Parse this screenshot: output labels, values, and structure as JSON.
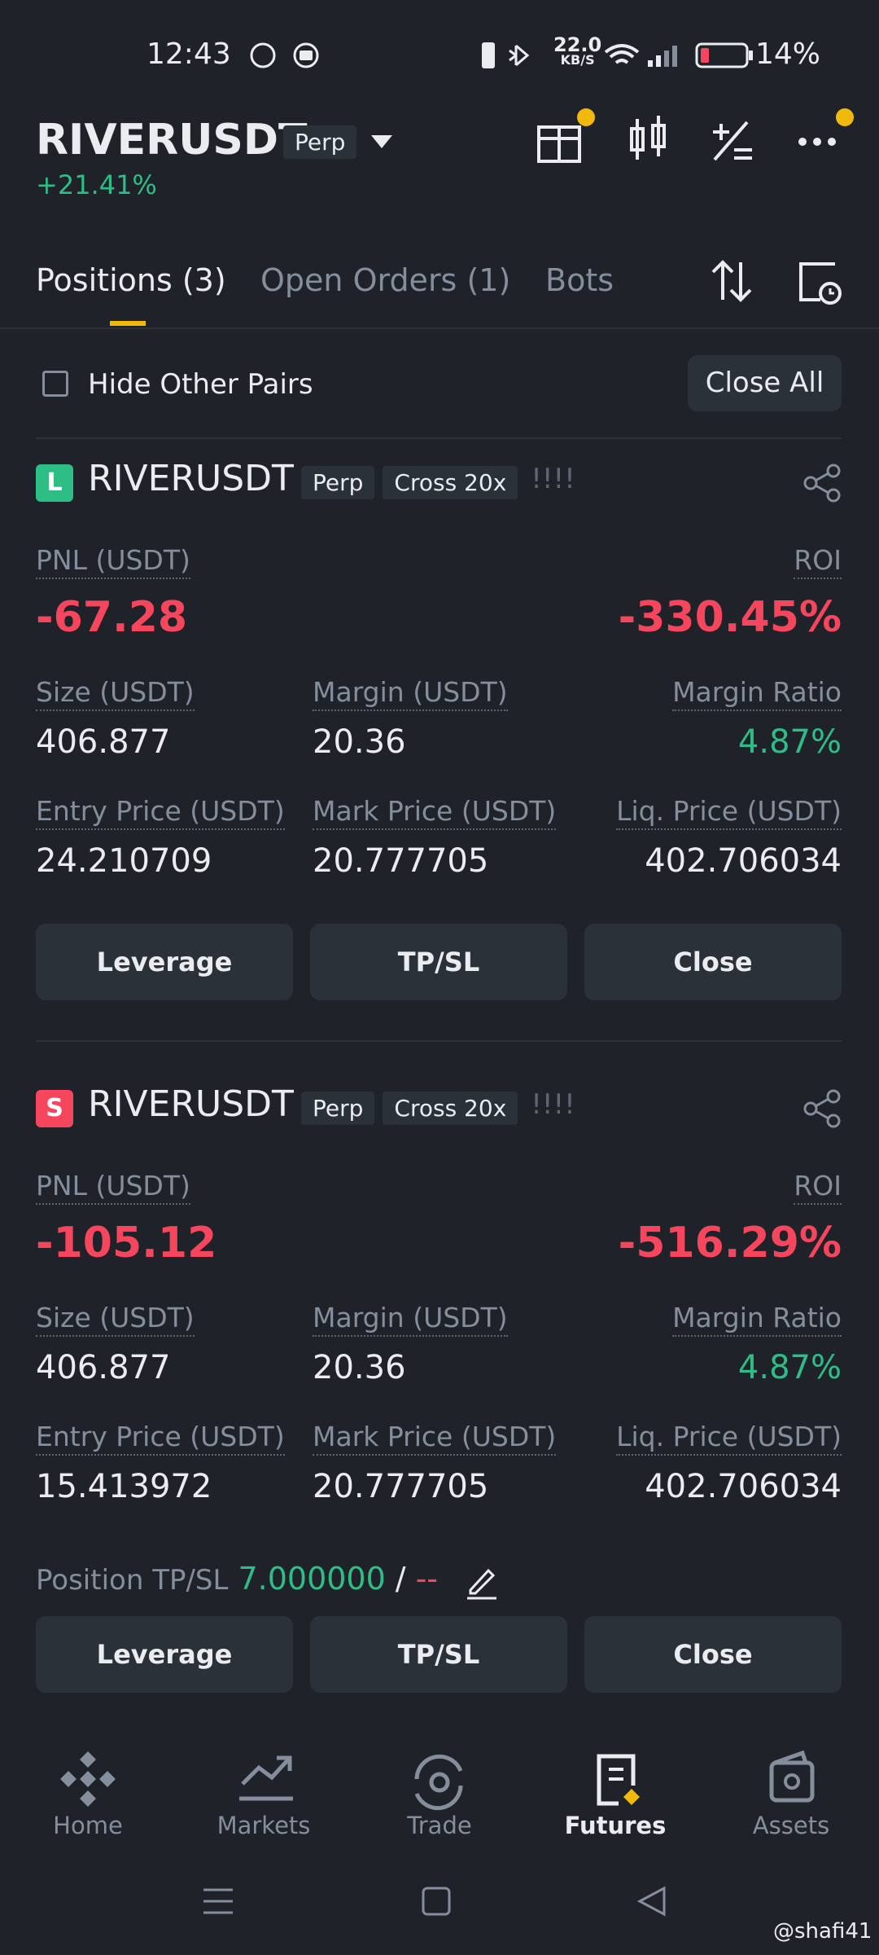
{
  "status": {
    "time": "12:43",
    "speed": "22.0",
    "speed_unit": "KB/S",
    "battery": "14%"
  },
  "header": {
    "symbol": "RIVERUSDT",
    "tag": "Perp",
    "change": "+21.41%"
  },
  "tabs": [
    "Positions (3)",
    "Open Orders (1)",
    "Bots"
  ],
  "filter": {
    "hide": "Hide Other Pairs",
    "close_all": "Close All"
  },
  "positions": [
    {
      "side": "L",
      "symbol": "RIVERUSDT",
      "tags": [
        "Perp",
        "Cross 20x"
      ],
      "alert": "!!!!",
      "pnl": {
        "label": "PNL (USDT)",
        "value": "-67.28"
      },
      "roi": {
        "label": "ROI",
        "value": "-330.45%"
      },
      "size": {
        "label": "Size (USDT)",
        "value": "406.877"
      },
      "margin": {
        "label": "Margin (USDT)",
        "value": "20.36"
      },
      "margin_ratio": {
        "label": "Margin Ratio",
        "value": "4.87%"
      },
      "entry_price": {
        "label": "Entry Price (USDT)",
        "value": "24.210709"
      },
      "mark_price": {
        "label": "Mark Price (USDT)",
        "value": "20.777705"
      },
      "liq_price": {
        "label": "Liq. Price (USDT)",
        "value": "402.706034"
      },
      "buttons": [
        "Leverage",
        "TP/SL",
        "Close"
      ]
    },
    {
      "side": "S",
      "symbol": "RIVERUSDT",
      "tags": [
        "Perp",
        "Cross 20x"
      ],
      "alert": "!!!!",
      "pnl": {
        "label": "PNL (USDT)",
        "value": "-105.12"
      },
      "roi": {
        "label": "ROI",
        "value": "-516.29%"
      },
      "size": {
        "label": "Size (USDT)",
        "value": "406.877"
      },
      "margin": {
        "label": "Margin (USDT)",
        "value": "20.36"
      },
      "margin_ratio": {
        "label": "Margin Ratio",
        "value": "4.87%"
      },
      "entry_price": {
        "label": "Entry Price (USDT)",
        "value": "15.413972"
      },
      "mark_price": {
        "label": "Mark Price (USDT)",
        "value": "20.777705"
      },
      "liq_price": {
        "label": "Liq. Price (USDT)",
        "value": "402.706034"
      },
      "tpsl": {
        "label": "Position TP/SL",
        "tp": "7.000000",
        "sep": "/",
        "sl": "--"
      },
      "buttons": [
        "Leverage",
        "TP/SL",
        "Close"
      ]
    }
  ],
  "nav": [
    "Home",
    "Markets",
    "Trade",
    "Futures",
    "Assets"
  ],
  "watermark": "@shafi41"
}
